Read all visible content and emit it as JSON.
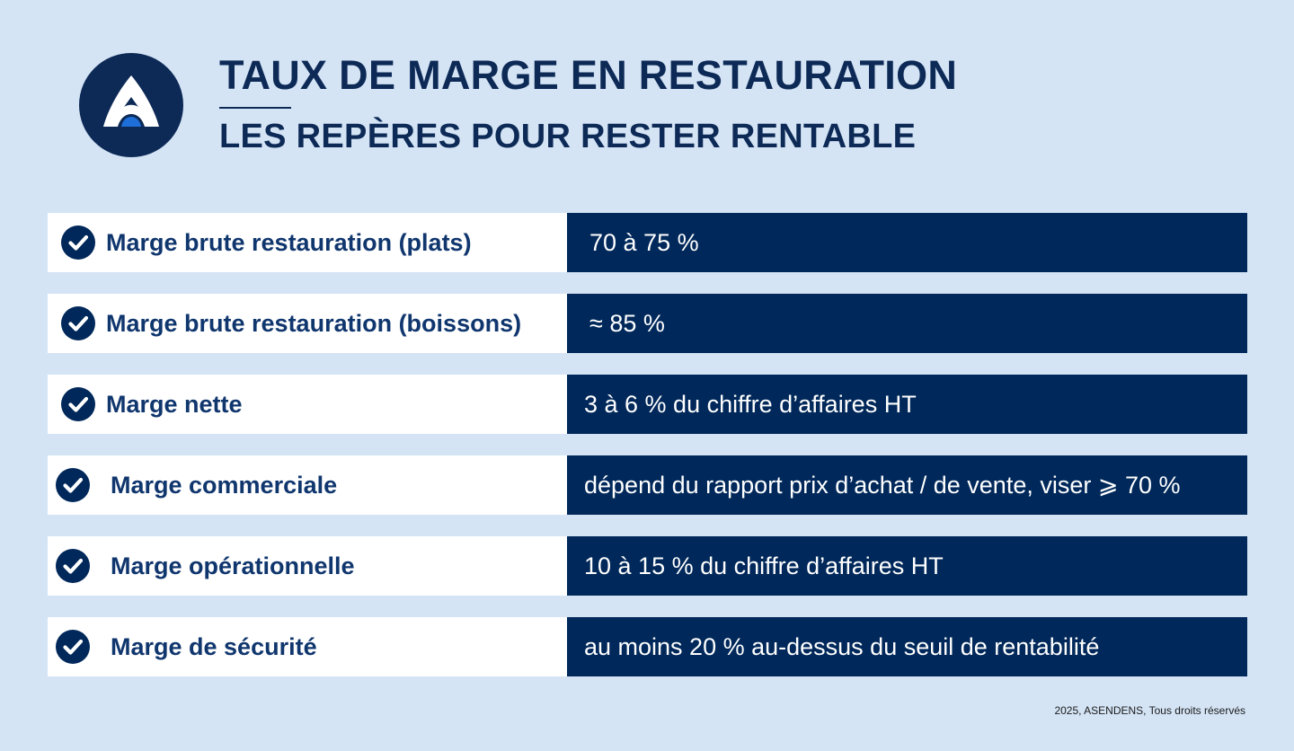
{
  "header": {
    "title": "TAUX DE MARGE EN RESTAURATION",
    "subtitle": "LES REPÈRES POUR RESTER RENTABLE",
    "logo_icon": "asendens-logo-icon"
  },
  "rows": [
    {
      "label": "Marge brute restauration (plats)",
      "value": "70 à 75 %"
    },
    {
      "label": "Marge brute restauration (boissons)",
      "value": "≈ 85 %"
    },
    {
      "label": "Marge nette",
      "value": "3 à 6 % du chiffre d’affaires HT"
    },
    {
      "label": "Marge commerciale",
      "value": "dépend du rapport prix d’achat / de vente, viser ⩾ 70 %"
    },
    {
      "label": "Marge opérationnelle",
      "value": "10 à 15 % du chiffre d’affaires HT"
    },
    {
      "label": "Marge de sécurité",
      "value": "au moins 20 % au-dessus du seuil de rentabilité"
    }
  ],
  "footer": {
    "copyright": "2025, ASENDENS, Tous droits réservés"
  },
  "colors": {
    "background": "#d4e4f5",
    "navy": "#00285a",
    "label_text": "#10366e",
    "accent_blue": "#1e6fd9"
  }
}
